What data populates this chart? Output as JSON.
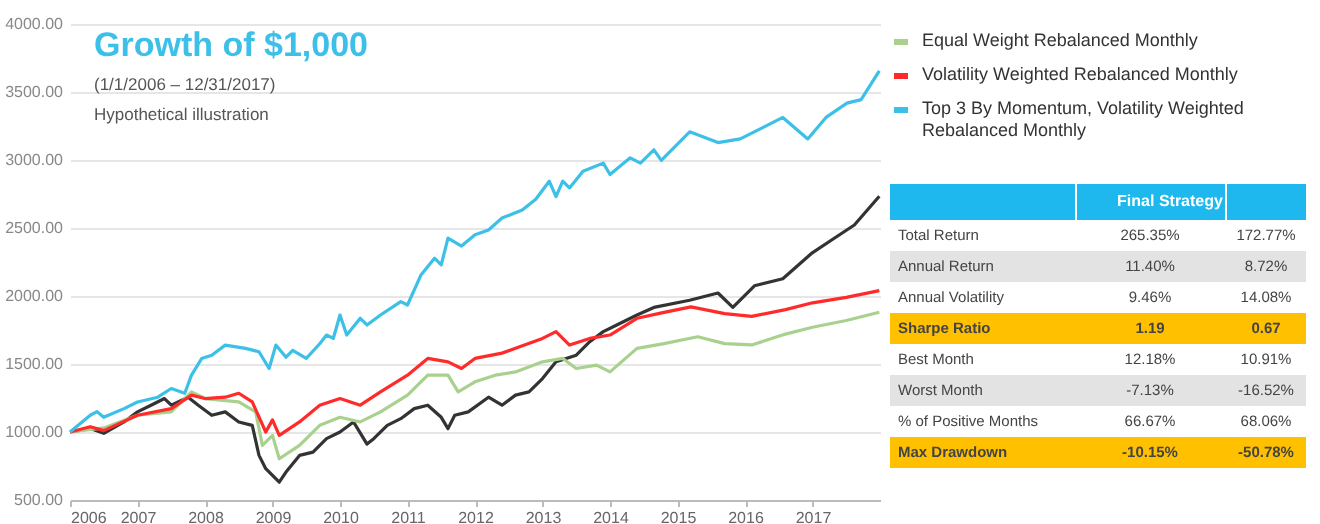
{
  "chart_data": {
    "type": "line",
    "title": "Growth of $1,000",
    "subtitle": "(1/1/2006 – 12/31/2017)",
    "annotations": [
      "Hypothetical illustration",
      "Final Strategy",
      "Total Return",
      "265.35%",
      "172.77%",
      "Annual Return",
      "11.40%",
      "8.72%",
      "Annual Volatility",
      "9.46%",
      "14.08%",
      "Sharpe Ratio",
      "1.19",
      "0.67",
      "Best Month",
      "12.18%",
      "10.91%",
      "Worst Month",
      "-7.13%",
      "-16.52%",
      "% of Positive Months",
      "66.67%",
      "68.06%",
      "Max Drawdown",
      "-10.15%",
      "-50.78%"
    ],
    "xlim": [
      2006,
      2018
    ],
    "xticks": [
      2006,
      2007,
      2008,
      2009,
      2010,
      2011,
      2012,
      2013,
      2014,
      2015,
      2016,
      2017
    ],
    "ylim": [
      500,
      4000
    ],
    "yticks": [
      {
        "value": 500,
        "label": "500.00"
      },
      {
        "value": 1000,
        "label": "1000.00"
      },
      {
        "value": 1500,
        "label": "1500.00"
      },
      {
        "value": 2000,
        "label": "2000.00"
      },
      {
        "value": 2500,
        "label": "2500.00"
      },
      {
        "value": 3000,
        "label": "3000.00"
      },
      {
        "value": 3500,
        "label": "3500.00"
      },
      {
        "value": 4000,
        "label": "4000.00"
      }
    ],
    "grid": "y",
    "legend": "top right",
    "line_style": "solid",
    "marker": "none",
    "series": [
      {
        "color": "#333333",
        "x": [
          2006,
          2006.3,
          2006.5,
          2006.8,
          2007,
          2007.2,
          2007.4,
          2007.5,
          2007.75,
          2007.9,
          2008.1,
          2008.3,
          2008.5,
          2008.7,
          2008.8,
          2008.9,
          2009.1,
          2009.2,
          2009.4,
          2009.6,
          2009.8,
          2010,
          2010.2,
          2010.4,
          2010.5,
          2010.7,
          2010.9,
          2011.1,
          2011.3,
          2011.5,
          2011.6,
          2011.7,
          2011.9,
          2012.2,
          2012.4,
          2012.6,
          2012.8,
          2013,
          2013.2,
          2013.5,
          2013.7,
          2013.9,
          2014.1,
          2014.4,
          2014.65,
          2015.18,
          2015.6,
          2015.82,
          2016.14,
          2016.56,
          2016.98,
          2017.3,
          2017.62,
          2017.99
        ],
        "values": [
          1000,
          1025,
          990,
          1074,
          1148,
          1197,
          1246,
          1197,
          1256,
          1197,
          1123,
          1148,
          1074,
          1049,
          828,
          730,
          631,
          705,
          828,
          852,
          951,
          1000,
          1074,
          911,
          951,
          1049,
          1098,
          1172,
          1197,
          1108,
          1025,
          1123,
          1148,
          1256,
          1197,
          1271,
          1295,
          1393,
          1516,
          1565,
          1664,
          1738,
          1787,
          1860,
          1916,
          1969,
          2022,
          1916,
          2075,
          2127,
          2311,
          2417,
          2522,
          2733
        ]
      },
      {
        "name": "Equal Weight Rebalanced Monthly",
        "color": "#a9d18e",
        "x": [
          2006,
          2006.5,
          2007,
          2007.5,
          2007.8,
          2008,
          2008.5,
          2008.75,
          2008.85,
          2009,
          2009.1,
          2009.4,
          2009.7,
          2010,
          2010.3,
          2010.6,
          2011,
          2011.3,
          2011.6,
          2011.75,
          2012,
          2012.3,
          2012.6,
          2013,
          2013.3,
          2013.5,
          2013.8,
          2014,
          2014.4,
          2014.8,
          2015.3,
          2015.7,
          2016.1,
          2016.6,
          2017,
          2017.5,
          2017.99
        ],
        "values": [
          1000,
          1030,
          1123,
          1148,
          1295,
          1246,
          1221,
          1148,
          902,
          975,
          803,
          902,
          1049,
          1108,
          1074,
          1148,
          1271,
          1418,
          1418,
          1295,
          1369,
          1418,
          1442,
          1516,
          1541,
          1467,
          1492,
          1442,
          1615,
          1650,
          1700,
          1650,
          1640,
          1720,
          1770,
          1820,
          1880
        ]
      },
      {
        "name": "Volatility Weighted Rebalanced Monthly",
        "color": "#ff2a2a",
        "x": [
          2006,
          2006.3,
          2006.5,
          2007,
          2007.5,
          2007.8,
          2008,
          2008.3,
          2008.5,
          2008.7,
          2008.9,
          2009,
          2009.1,
          2009.4,
          2009.7,
          2010,
          2010.3,
          2010.6,
          2011,
          2011.3,
          2011.6,
          2011.8,
          2012,
          2012.4,
          2012.6,
          2013,
          2013.2,
          2013.4,
          2013.7,
          2014,
          2014.4,
          2014.8,
          2015.2,
          2015.7,
          2016.1,
          2016.6,
          2017,
          2017.5,
          2017.99
        ],
        "values": [
          1000,
          1039,
          1010,
          1123,
          1172,
          1271,
          1246,
          1256,
          1285,
          1221,
          1000,
          1089,
          975,
          1074,
          1197,
          1246,
          1197,
          1295,
          1418,
          1541,
          1516,
          1467,
          1541,
          1580,
          1615,
          1688,
          1738,
          1639,
          1688,
          1713,
          1836,
          1880,
          1920,
          1870,
          1850,
          1900,
          1950,
          1990,
          2040
        ]
      },
      {
        "name": "Top 3 By Momentum, Volatility Weighted Rebalanced Monthly",
        "color": "#3cc0e8",
        "x": [
          2006,
          2006.3,
          2006.4,
          2006.5,
          2006.8,
          2007,
          2007.3,
          2007.5,
          2007.7,
          2007.8,
          2007.95,
          2008.1,
          2008.3,
          2008.6,
          2008.8,
          2008.95,
          2009.05,
          2009.2,
          2009.3,
          2009.5,
          2009.7,
          2009.8,
          2009.9,
          2010,
          2010.1,
          2010.3,
          2010.4,
          2010.6,
          2010.9,
          2011,
          2011.2,
          2011.4,
          2011.5,
          2011.6,
          2011.8,
          2012,
          2012.2,
          2012.4,
          2012.7,
          2012.9,
          2013.1,
          2013.2,
          2013.3,
          2013.4,
          2013.6,
          2013.9,
          2014,
          2014.3,
          2014.45,
          2014.65,
          2014.76,
          2015.18,
          2015.6,
          2015.93,
          2016.56,
          2016.93,
          2017.2,
          2017.51,
          2017.72,
          2017.99
        ],
        "values": [
          1000,
          1123,
          1150,
          1108,
          1172,
          1221,
          1256,
          1320,
          1285,
          1418,
          1540,
          1565,
          1639,
          1615,
          1590,
          1467,
          1639,
          1550,
          1600,
          1541,
          1649,
          1713,
          1688,
          1860,
          1713,
          1836,
          1787,
          1860,
          1959,
          1934,
          2155,
          2278,
          2229,
          2426,
          2367,
          2451,
          2485,
          2573,
          2632,
          2711,
          2844,
          2731,
          2844,
          2795,
          2918,
          2977,
          2893,
          3016,
          2977,
          3075,
          2997,
          3207,
          3128,
          3155,
          3313,
          3155,
          3313,
          3418,
          3444,
          3655
        ]
      }
    ]
  }
}
